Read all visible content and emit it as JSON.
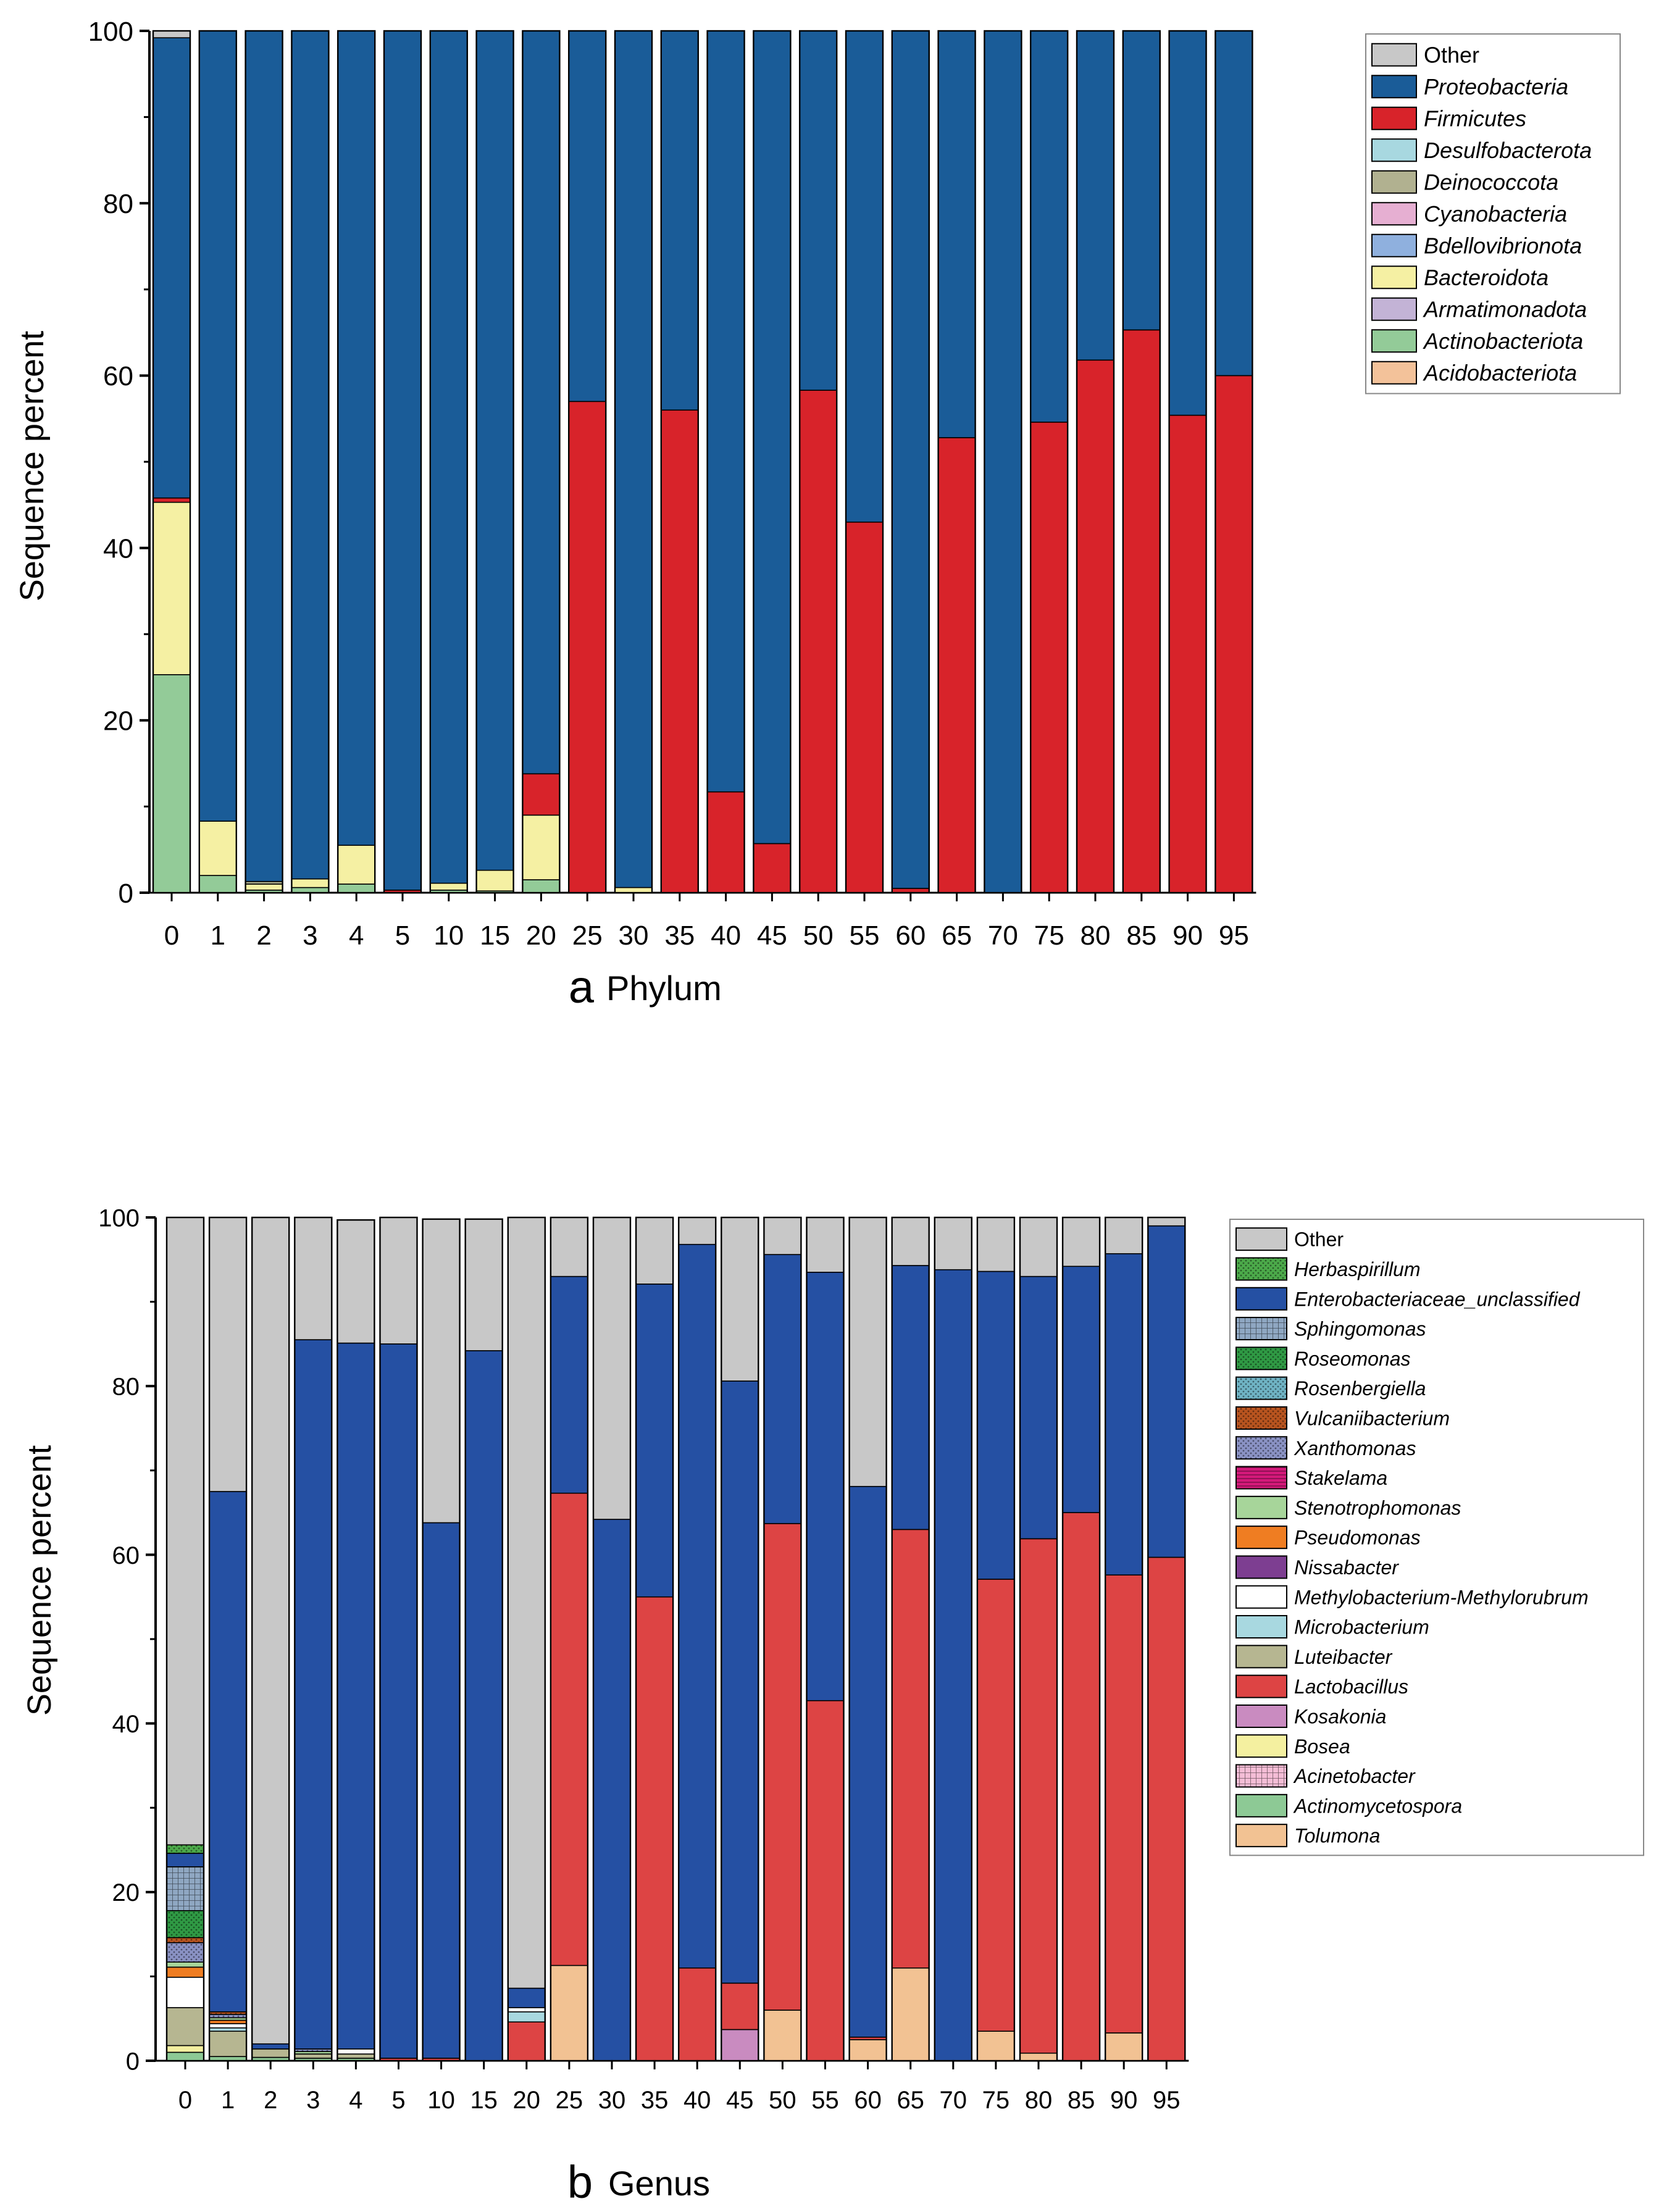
{
  "chart_data": [
    {
      "type": "bar",
      "stacked": true,
      "panel_letter": "a",
      "title": "Phylum",
      "xlabel": "",
      "ylabel": "Sequence percent",
      "ylim": [
        0,
        100
      ],
      "yticks": [
        0,
        20,
        40,
        60,
        80,
        100
      ],
      "categories": [
        "0",
        "1",
        "2",
        "3",
        "4",
        "5",
        "10",
        "15",
        "20",
        "25",
        "30",
        "35",
        "40",
        "45",
        "50",
        "55",
        "60",
        "65",
        "70",
        "75",
        "80",
        "85",
        "90",
        "95"
      ],
      "legend_position": "top-right",
      "series": [
        {
          "name": "Acidobacteriota",
          "color": "#f3c29a",
          "values": [
            0,
            0,
            0,
            0,
            0,
            0,
            0,
            0,
            0,
            0,
            0,
            0,
            0,
            0,
            0,
            0,
            0,
            0,
            0,
            0,
            0,
            0,
            0,
            0
          ]
        },
        {
          "name": "Actinobacteriota",
          "color": "#93cb98",
          "values": [
            25.3,
            2,
            0.3,
            0.6,
            1,
            0,
            0.3,
            0.2,
            1.5,
            0,
            0,
            0,
            0,
            0,
            0,
            0,
            0,
            0,
            0,
            0,
            0,
            0,
            0,
            0
          ]
        },
        {
          "name": "Armatimonadota",
          "color": "#c3b3d6",
          "values": [
            0,
            0,
            0,
            0,
            0,
            0,
            0,
            0,
            0,
            0,
            0,
            0,
            0,
            0,
            0,
            0,
            0,
            0,
            0,
            0,
            0,
            0,
            0,
            0
          ]
        },
        {
          "name": "Bacteroidota",
          "color": "#f5f0a3",
          "values": [
            20,
            6.3,
            0.7,
            1,
            4.5,
            0,
            0.8,
            2.4,
            7.5,
            0,
            0.6,
            0,
            0,
            0,
            0,
            0,
            0,
            0,
            0,
            0,
            0,
            0,
            0,
            0
          ]
        },
        {
          "name": "Bdellovibrionota",
          "color": "#8fb0de",
          "values": [
            0,
            0,
            0,
            0,
            0,
            0,
            0,
            0,
            0,
            0,
            0,
            0,
            0,
            0,
            0,
            0,
            0,
            0,
            0,
            0,
            0,
            0,
            0,
            0
          ]
        },
        {
          "name": "Cyanobacteria",
          "color": "#e6afd2",
          "values": [
            0,
            0,
            0,
            0,
            0,
            0,
            0,
            0,
            0,
            0,
            0,
            0,
            0,
            0,
            0,
            0,
            0,
            0,
            0,
            0,
            0,
            0,
            0,
            0
          ]
        },
        {
          "name": "Deinococcota",
          "color": "#b1b190",
          "values": [
            0,
            0,
            0.3,
            0,
            0,
            0,
            0,
            0,
            0,
            0,
            0,
            0,
            0,
            0,
            0,
            0,
            0,
            0,
            0,
            0,
            0,
            0,
            0,
            0
          ]
        },
        {
          "name": "Desulfobacterota",
          "color": "#a8d8e0",
          "values": [
            0,
            0,
            0,
            0,
            0,
            0,
            0,
            0,
            0,
            0,
            0,
            0,
            0,
            0,
            0,
            0,
            0,
            0,
            0,
            0,
            0,
            0,
            0,
            0
          ]
        },
        {
          "name": "Firmicutes",
          "color": "#d8232a",
          "values": [
            0.5,
            0,
            0,
            0,
            0,
            0.3,
            0,
            0,
            4.8,
            57,
            0,
            56,
            11.7,
            5.7,
            58.3,
            43,
            0.5,
            52.8,
            0,
            54.6,
            61.8,
            65.3,
            55.4,
            60
          ]
        },
        {
          "name": "Proteobacteria",
          "color": "#1a5c98",
          "values": [
            53.4,
            91.7,
            98.7,
            98.4,
            94.5,
            99.7,
            98.9,
            97.4,
            86.2,
            43,
            99.4,
            44,
            88.3,
            94.3,
            41.7,
            57,
            99.5,
            47.2,
            100,
            45.4,
            38.2,
            34.7,
            44.6,
            40
          ]
        },
        {
          "name": "Other",
          "color": "#c8c8c8",
          "values": [
            0.8,
            0,
            0,
            0,
            0,
            0,
            0,
            0,
            0,
            0,
            0,
            0,
            0,
            0,
            0,
            0,
            0,
            0,
            0,
            0,
            0,
            0,
            0,
            0
          ]
        }
      ],
      "legend_order": [
        "Other",
        "Proteobacteria",
        "Firmicutes",
        "Desulfobacterota",
        "Deinococcota",
        "Cyanobacteria",
        "Bdellovibrionota",
        "Bacteroidota",
        "Armatimonadota",
        "Actinobacteriota",
        "Acidobacteriota"
      ]
    },
    {
      "type": "bar",
      "stacked": true,
      "panel_letter": "b",
      "title": "Genus",
      "xlabel": "",
      "ylabel": "Sequence percent",
      "ylim": [
        0,
        100
      ],
      "yticks": [
        0,
        20,
        40,
        60,
        80,
        100
      ],
      "categories": [
        "0",
        "1",
        "2",
        "3",
        "4",
        "5",
        "10",
        "15",
        "20",
        "25",
        "30",
        "35",
        "40",
        "45",
        "50",
        "55",
        "60",
        "65",
        "70",
        "75",
        "80",
        "85",
        "90",
        "95"
      ],
      "legend_position": "top-right",
      "series": [
        {
          "name": "Tolumona",
          "color": "#f2c293",
          "values": [
            0,
            0,
            0,
            0,
            0,
            0,
            0,
            0,
            0,
            11.3,
            0,
            0,
            0,
            0,
            6,
            0,
            2.5,
            11,
            0,
            3.5,
            0.9,
            0,
            3.3,
            0
          ]
        },
        {
          "name": "Actinomycetospora",
          "color": "#8dc995",
          "values": [
            1,
            0.5,
            0.4,
            0.3,
            0.3,
            0,
            0,
            0,
            0,
            0,
            0,
            0,
            0,
            0,
            0,
            0,
            0,
            0,
            0,
            0,
            0,
            0,
            0,
            0
          ]
        },
        {
          "name": "Acinetobacter",
          "color": "#f4bdd6",
          "pattern": "grid",
          "values": [
            0,
            0,
            0,
            0,
            0,
            0,
            0,
            0,
            0,
            0,
            0,
            0,
            0,
            0,
            0,
            0,
            0,
            0,
            0,
            0,
            0,
            0,
            0,
            0
          ]
        },
        {
          "name": "Bosea",
          "color": "#f4f0a0",
          "values": [
            0.8,
            0,
            0,
            0,
            0,
            0,
            0,
            0,
            0,
            0,
            0,
            0,
            0,
            0,
            0,
            0,
            0,
            0,
            0,
            0,
            0,
            0,
            0,
            0
          ]
        },
        {
          "name": "Kosakonia",
          "color": "#c98bc0",
          "values": [
            0,
            0,
            0,
            0,
            0,
            0,
            0,
            0,
            0,
            0,
            0,
            0,
            0,
            3.7,
            0,
            0,
            0,
            0,
            0,
            0,
            0,
            0,
            0,
            0
          ]
        },
        {
          "name": "Lactobacillus",
          "color": "#dd4444",
          "values": [
            0,
            0,
            0,
            0,
            0,
            0.3,
            0.3,
            0,
            4.6,
            56,
            0,
            55,
            11,
            5.5,
            57.7,
            42.7,
            0.3,
            52,
            0,
            53.6,
            61,
            65,
            54.3,
            59.7
          ]
        },
        {
          "name": "Luteibacter",
          "color": "#b6b691",
          "values": [
            4.5,
            3,
            1,
            0.5,
            0.5,
            0,
            0,
            0,
            0,
            0,
            0,
            0,
            0,
            0,
            0,
            0,
            0,
            0,
            0,
            0,
            0,
            0,
            0,
            0
          ]
        },
        {
          "name": "Microbacterium",
          "color": "#a8d8e0",
          "values": [
            0,
            0.4,
            0,
            0,
            0,
            0,
            0,
            0,
            1.2,
            0,
            0,
            0,
            0,
            0,
            0,
            0,
            0,
            0,
            0,
            0,
            0,
            0,
            0,
            0
          ]
        },
        {
          "name": "Methylobacterium-Methylorubrum",
          "color": "#ffffff",
          "values": [
            3.6,
            0.5,
            0,
            0,
            0.6,
            0,
            0,
            0,
            0.5,
            0,
            0,
            0,
            0,
            0,
            0,
            0,
            0,
            0,
            0,
            0,
            0,
            0,
            0,
            0
          ]
        },
        {
          "name": "Nissabacter",
          "color": "#7d3e91",
          "values": [
            0,
            0,
            0,
            0,
            0,
            0,
            0,
            0,
            0,
            0,
            0,
            0,
            0,
            0,
            0,
            0,
            0,
            0,
            0,
            0,
            0,
            0,
            0,
            0
          ]
        },
        {
          "name": "Pseudomonas",
          "color": "#ef7d22",
          "values": [
            1.2,
            0.4,
            0,
            0,
            0,
            0,
            0,
            0,
            0,
            0,
            0,
            0,
            0,
            0,
            0,
            0,
            0,
            0,
            0,
            0,
            0,
            0,
            0,
            0
          ]
        },
        {
          "name": "Stenotrophomonas",
          "color": "#a7d59a",
          "values": [
            0.6,
            0.3,
            0,
            0.3,
            0,
            0,
            0,
            0,
            0,
            0,
            0,
            0,
            0,
            0,
            0,
            0,
            0,
            0,
            0,
            0,
            0,
            0,
            0,
            0
          ]
        },
        {
          "name": "Stakelama",
          "color": "#d4197a",
          "pattern": "hlines",
          "values": [
            0,
            0,
            0,
            0,
            0,
            0,
            0,
            0,
            0,
            0,
            0,
            0,
            0,
            0,
            0,
            0,
            0,
            0,
            0,
            0,
            0,
            0,
            0,
            0
          ]
        },
        {
          "name": "Xanthomonas",
          "color": "#8a92c4",
          "pattern": "dots",
          "values": [
            2.3,
            0.4,
            0,
            0.3,
            0,
            0,
            0,
            0,
            0,
            0,
            0,
            0,
            0,
            0,
            0,
            0,
            0,
            0,
            0,
            0,
            0,
            0,
            0,
            0
          ]
        },
        {
          "name": "Vulcaniibacterium",
          "color": "#b8541f",
          "pattern": "dots",
          "values": [
            0.6,
            0.3,
            0,
            0,
            0,
            0,
            0,
            0,
            0,
            0,
            0,
            0,
            0,
            0,
            0,
            0,
            0,
            0,
            0,
            0,
            0,
            0,
            0,
            0
          ]
        },
        {
          "name": "Rosenbergiella",
          "color": "#6fb3c4",
          "pattern": "dots",
          "values": [
            0,
            0,
            0,
            0,
            0,
            0,
            0,
            0,
            0,
            0,
            0,
            0,
            0,
            0,
            0,
            0,
            0,
            0,
            0,
            0,
            0,
            0,
            0,
            0
          ]
        },
        {
          "name": "Roseomonas",
          "color": "#2f9a44",
          "pattern": "dots",
          "values": [
            3.2,
            0,
            0,
            0,
            0,
            0,
            0,
            0,
            0,
            0,
            0,
            0,
            0,
            0,
            0,
            0,
            0,
            0,
            0,
            0,
            0,
            0,
            0,
            0
          ]
        },
        {
          "name": "Sphingomonas",
          "color": "#8fa7c2",
          "pattern": "grid",
          "values": [
            5.2,
            0,
            0,
            0,
            0,
            0,
            0,
            0,
            0,
            0,
            0,
            0,
            0,
            0,
            0,
            0,
            0,
            0,
            0,
            0,
            0,
            0,
            0,
            0
          ]
        },
        {
          "name": "Enterobacteriaceae_unclassified",
          "color": "#2550a3",
          "values": [
            1.6,
            61.7,
            0.6,
            84.1,
            83.7,
            84.7,
            63.5,
            84.2,
            2.3,
            25.7,
            64.2,
            37.1,
            85.8,
            71.4,
            31.9,
            50.8,
            65.3,
            31.3,
            93.8,
            36.5,
            31.1,
            29.2,
            38.1,
            39.3
          ]
        },
        {
          "name": "Herbaspirillum",
          "color": "#4caa4a",
          "pattern": "dots",
          "values": [
            1,
            0,
            0,
            0,
            0,
            0,
            0,
            0,
            0,
            0,
            0,
            0,
            0,
            0,
            0,
            0,
            0,
            0,
            0,
            0,
            0,
            0,
            0,
            0
          ]
        },
        {
          "name": "Other",
          "color": "#c8c8c8",
          "values": [
            74.4,
            32.5,
            98,
            14.5,
            14.6,
            15,
            36,
            15.6,
            91.4,
            7,
            35.8,
            7.9,
            3.2,
            19.4,
            4.4,
            6.5,
            31.9,
            5.7,
            6.2,
            6.4,
            7,
            5.8,
            4.3,
            1
          ]
        }
      ],
      "legend_order": [
        "Other",
        "Herbaspirillum",
        "Enterobacteriaceae_unclassified",
        "Sphingomonas",
        "Roseomonas",
        "Rosenbergiella",
        "Vulcaniibacterium",
        "Xanthomonas",
        "Stakelama",
        "Stenotrophomonas",
        "Pseudomonas",
        "Nissabacter",
        "Methylobacterium-Methylorubrum",
        "Microbacterium",
        "Luteibacter",
        "Lactobacillus",
        "Kosakonia",
        "Bosea",
        "Acinetobacter",
        "Actinomycetospora",
        "Tolumona"
      ]
    }
  ]
}
